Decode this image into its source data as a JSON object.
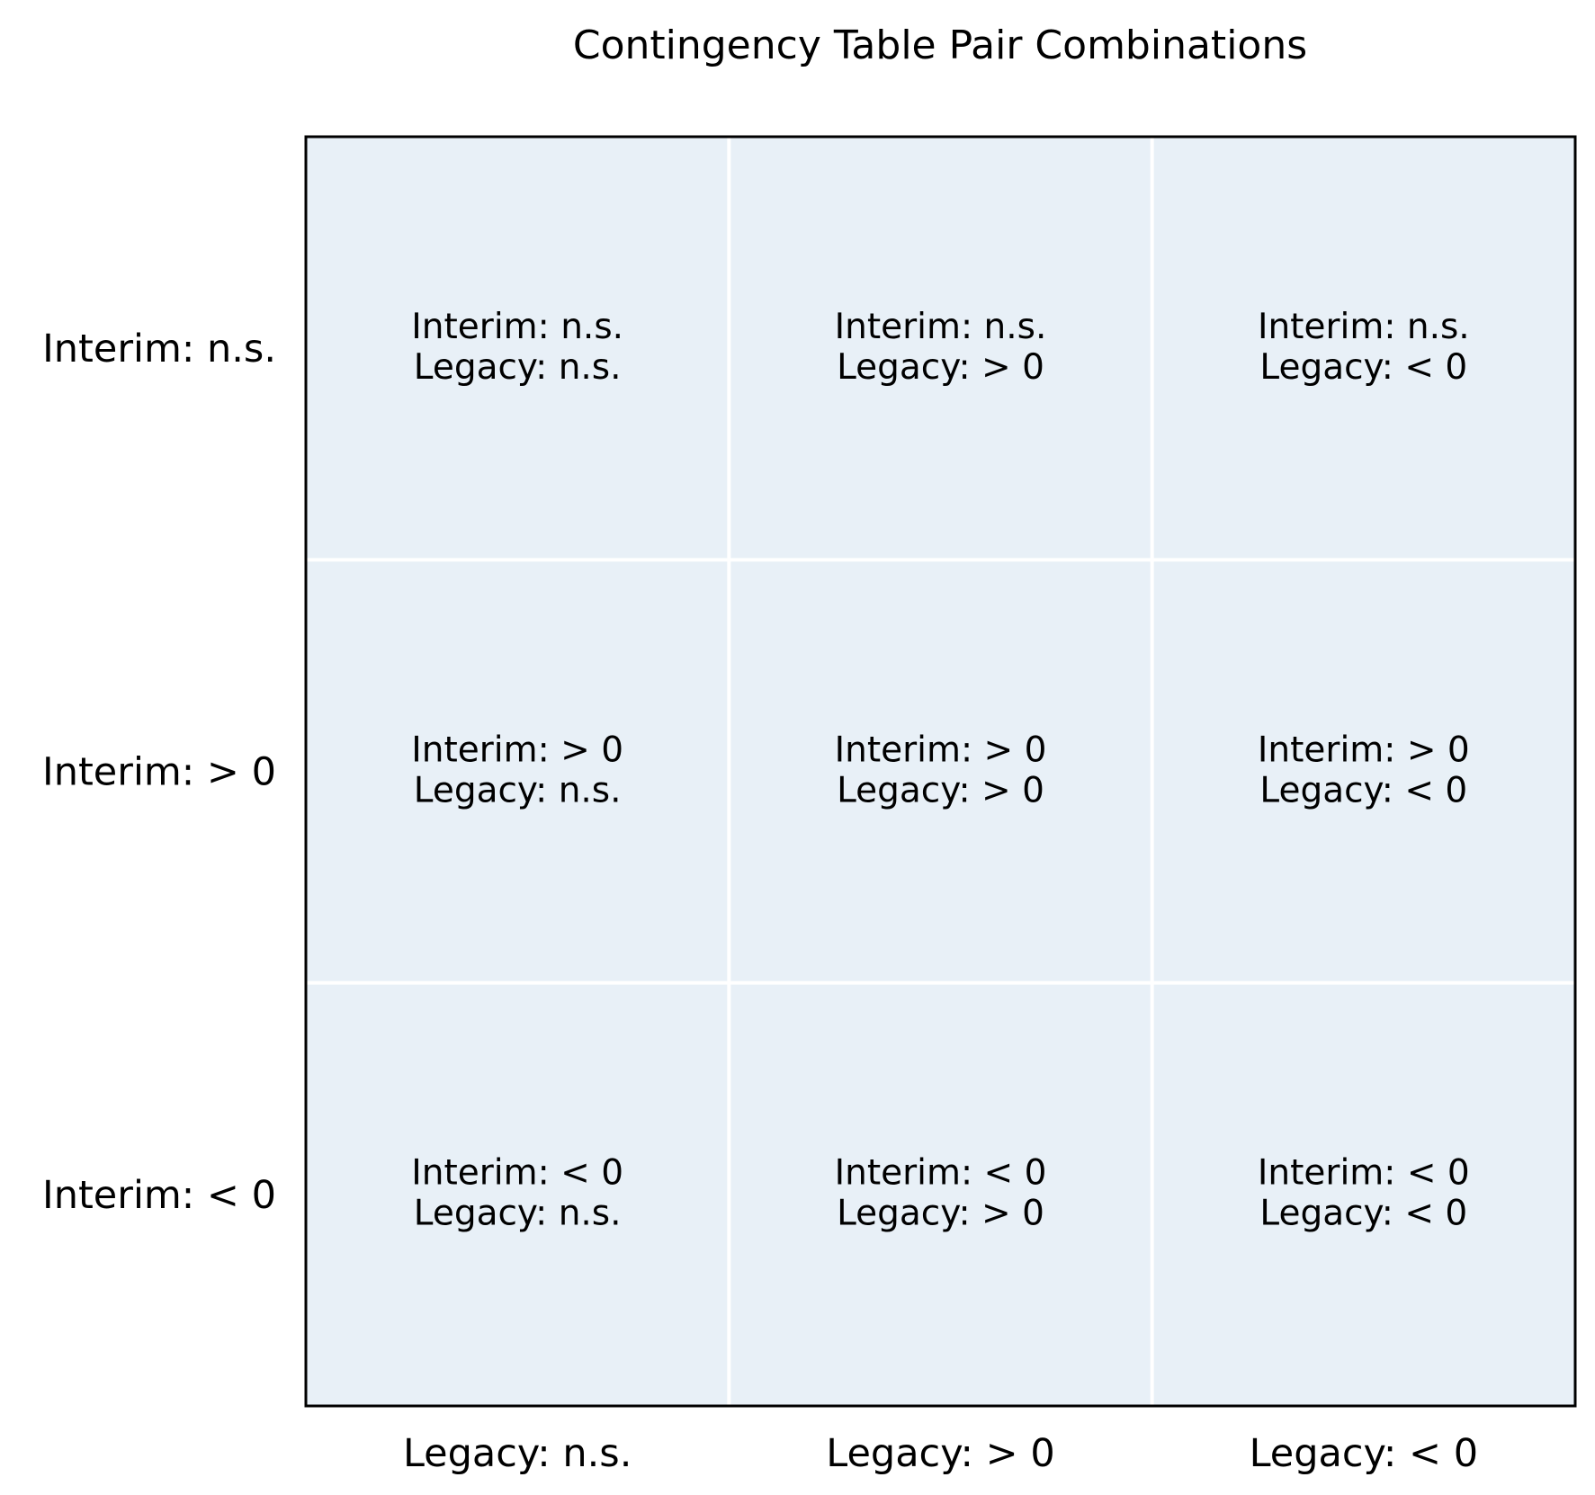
{
  "chart_data": {
    "type": "table",
    "title": "Contingency Table Pair Combinations",
    "row_labels": [
      "Interim: n.s.",
      "Interim: > 0",
      "Interim: < 0"
    ],
    "col_labels": [
      "Legacy: n.s.",
      "Legacy: > 0",
      "Legacy: < 0"
    ],
    "cells": [
      [
        {
          "line1": "Interim: n.s.",
          "line2": "Legacy: n.s."
        },
        {
          "line1": "Interim: n.s.",
          "line2": "Legacy: > 0"
        },
        {
          "line1": "Interim: n.s.",
          "line2": "Legacy: < 0"
        }
      ],
      [
        {
          "line1": "Interim: > 0",
          "line2": "Legacy: n.s."
        },
        {
          "line1": "Interim: > 0",
          "line2": "Legacy: > 0"
        },
        {
          "line1": "Interim: > 0",
          "line2": "Legacy: < 0"
        }
      ],
      [
        {
          "line1": "Interim: < 0",
          "line2": "Legacy: n.s."
        },
        {
          "line1": "Interim: < 0",
          "line2": "Legacy: > 0"
        },
        {
          "line1": "Interim: < 0",
          "line2": "Legacy: < 0"
        }
      ]
    ],
    "colors": {
      "cell_fill": "#e8f0f7",
      "grid_line": "#ffffff",
      "frame": "#000000"
    }
  }
}
